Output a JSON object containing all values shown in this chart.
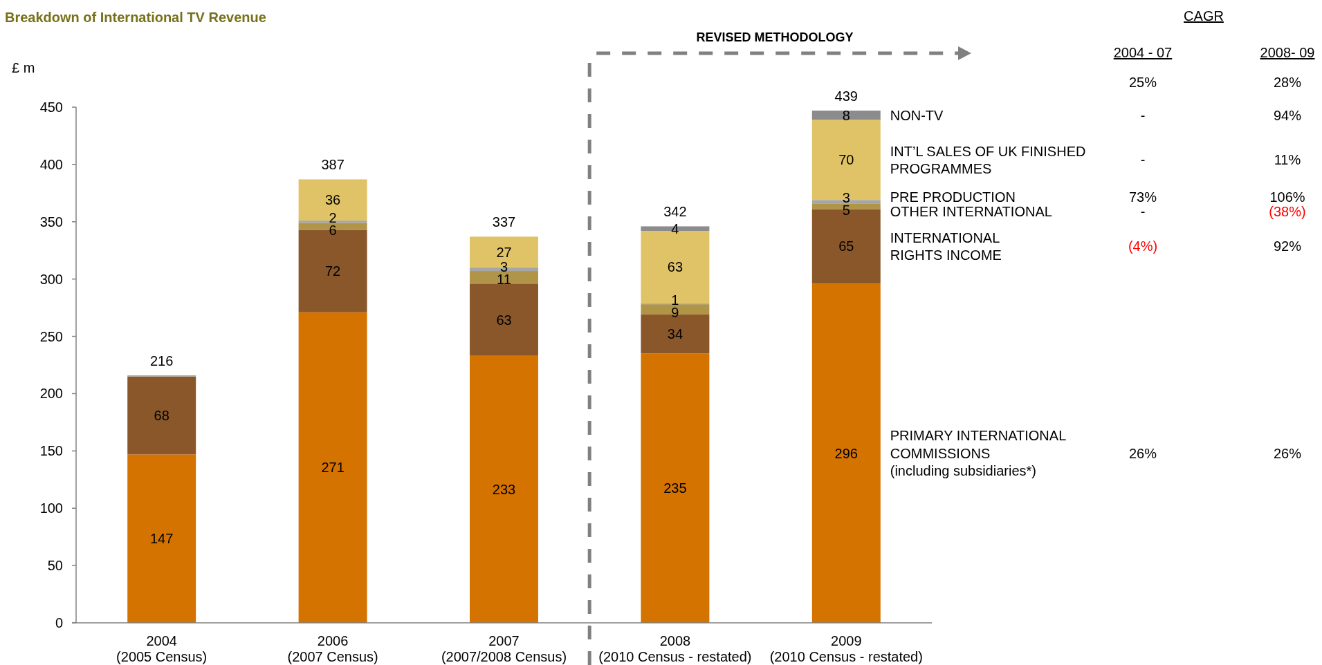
{
  "chart_data": {
    "type": "bar",
    "stacked": true,
    "title": "Breakdown of International TV Revenue",
    "ylabel": "£ m",
    "categories": [
      "2004\n(2005 Census)",
      "2006\n(2007 Census)",
      "2007\n(2007/2008 Census)",
      "2008\n(2010 Census - restated)",
      "2009\n(2010 Census - restated)"
    ],
    "series": [
      {
        "name": "PRIMARY INTERNATIONAL\nCOMMISSIONS\n(including subsidiaries*)",
        "color": "#d57300",
        "values": [
          147,
          271,
          233,
          235,
          296
        ],
        "value_labels": [
          "147",
          "271",
          "233",
          "235",
          "296"
        ]
      },
      {
        "name": "INTERNATIONAL\nRIGHTS INCOME",
        "color": "#8a572a",
        "values": [
          68,
          72,
          63,
          34,
          65
        ],
        "value_labels": [
          "68",
          "72",
          "63",
          "34",
          "65"
        ]
      },
      {
        "name": "OTHER INTERNATIONAL",
        "color": "#b09448",
        "values": [
          null,
          6,
          11,
          9,
          5
        ],
        "value_labels": [
          null,
          "6",
          "11",
          "9",
          "5"
        ]
      },
      {
        "name": "PRE PRODUCTION",
        "color": "#a6a6a6",
        "values": [
          1,
          2,
          3,
          1,
          3
        ],
        "value_labels": [
          null,
          "2",
          "3",
          "1",
          "3"
        ]
      },
      {
        "name": "INT’L SALES OF UK FINISHED\nPROGRAMMES",
        "color": "#e1c367",
        "values": [
          null,
          36,
          27,
          63,
          70
        ],
        "value_labels": [
          null,
          "36",
          "27",
          "63",
          "70"
        ]
      },
      {
        "name": "NON-TV",
        "color": "#8c8c8c",
        "values": [
          null,
          null,
          null,
          4,
          8
        ],
        "value_labels": [
          null,
          null,
          null,
          "4",
          "8"
        ]
      }
    ],
    "ylim": [
      0,
      450
    ],
    "yticks": [
      0,
      50,
      100,
      150,
      200,
      250,
      300,
      350,
      400,
      450
    ],
    "totals": [
      "216",
      "387",
      "337",
      null,
      null
    ],
    "annotations": [
      "REVISED METHODOLOGY",
      "CAGR",
      "2004 - 07",
      "2008- 09",
      "25%",
      "28%",
      "-",
      "94%",
      "-",
      "11%",
      "73%",
      "106%",
      "-",
      "(38%)",
      "(4%)",
      "92%",
      "26%",
      "26%",
      "342",
      "439"
    ]
  }
}
